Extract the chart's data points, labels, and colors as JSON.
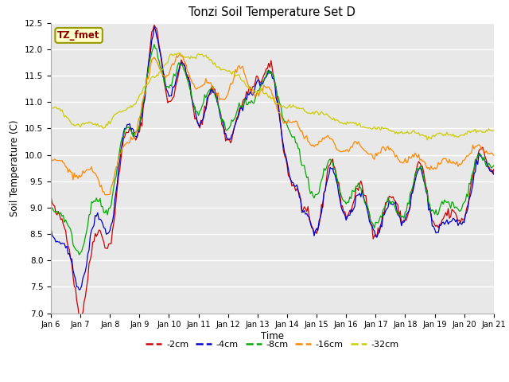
{
  "title": "Tonzi Soil Temperature Set D",
  "xlabel": "Time",
  "ylabel": "Soil Temperature (C)",
  "ylim": [
    7.0,
    12.5
  ],
  "xlim": [
    0,
    15
  ],
  "fig_bg": "#ffffff",
  "plot_bg": "#e8e8e8",
  "annotation_text": "TZ_fmet",
  "annotation_bg": "#ffffcc",
  "annotation_border": "#999900",
  "annotation_fg": "#8b0000",
  "tick_labels": [
    "Jan 6",
    "Jan 7",
    "Jan 8",
    "Jan 9",
    "Jan 10",
    "Jan 11",
    "Jan 12",
    "Jan 13",
    "Jan 14",
    "Jan 15",
    "Jan 16",
    "Jan 17",
    "Jan 18",
    "Jan 19",
    "Jan 20",
    "Jan 21"
  ],
  "legend_labels": [
    "-2cm",
    "-4cm",
    "-8cm",
    "-16cm",
    "-32cm"
  ],
  "legend_colors": [
    "#cc0000",
    "#0000cc",
    "#00aa00",
    "#ff8800",
    "#cccc00"
  ],
  "n_per_day": 24,
  "n_days": 15
}
